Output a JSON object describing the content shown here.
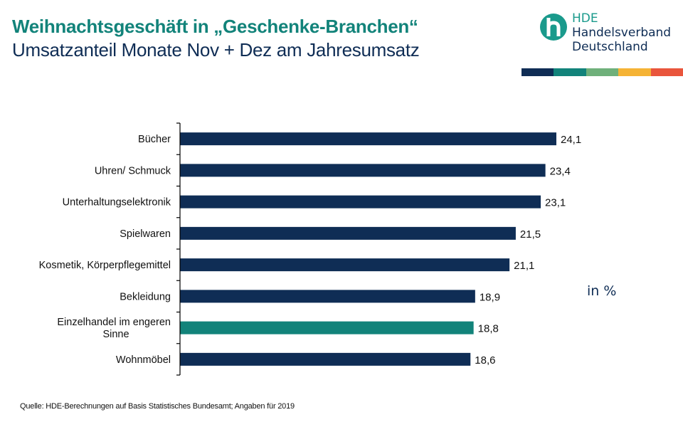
{
  "header": {
    "title": "Weihnachtsgeschäft in „Geschenke-Branchen“",
    "subtitle": "Umsatzanteil Monate Nov + Dez am Jahresumsatz"
  },
  "logo": {
    "icon": "hde-h-logo-icon",
    "line1": "HDE",
    "line2": "Handelsverband",
    "line3": "Deutschland",
    "stripe_colors": [
      "#0f2d55",
      "#12837a",
      "#6fb07a",
      "#f5b335",
      "#e9553c"
    ]
  },
  "unit_label": "in %",
  "source": "Quelle: HDE-Berechnungen auf Basis Statistisches Bundesamt; Angaben für 2019",
  "colors": {
    "bar_default": "#0f2d55",
    "bar_highlight": "#12837a",
    "title": "#12837a",
    "text": "#0f2d55"
  },
  "chart_data": {
    "type": "bar",
    "orientation": "horizontal",
    "title": "Weihnachtsgeschäft in „Geschenke-Branchen“",
    "subtitle": "Umsatzanteil Monate Nov + Dez am Jahresumsatz",
    "xlabel": "",
    "ylabel": "",
    "unit": "in %",
    "categories": [
      "Bücher",
      "Uhren/ Schmuck",
      "Unterhaltungselektronik",
      "Spielwaren",
      "Kosmetik, Körperpflegemittel",
      "Bekleidung",
      "Einzelhandel im engeren Sinne",
      "Wohnmöbel"
    ],
    "category_lines": [
      [
        "Bücher"
      ],
      [
        "Uhren/ Schmuck"
      ],
      [
        "Unterhaltungselektronik"
      ],
      [
        "Spielwaren"
      ],
      [
        "Kosmetik, Körperpflegemittel"
      ],
      [
        "Bekleidung"
      ],
      [
        "Einzelhandel im engeren",
        "Sinne"
      ],
      [
        "Wohnmöbel"
      ]
    ],
    "values": [
      24.1,
      23.4,
      23.1,
      21.5,
      21.1,
      18.9,
      18.8,
      18.6
    ],
    "value_labels": [
      "24,1",
      "23,4",
      "23,1",
      "21,5",
      "21,1",
      "18,9",
      "18,8",
      "18,6"
    ],
    "highlight": [
      false,
      false,
      false,
      false,
      false,
      false,
      true,
      false
    ],
    "xlim": [
      0,
      24.1
    ],
    "grid": false,
    "legend": "none"
  }
}
